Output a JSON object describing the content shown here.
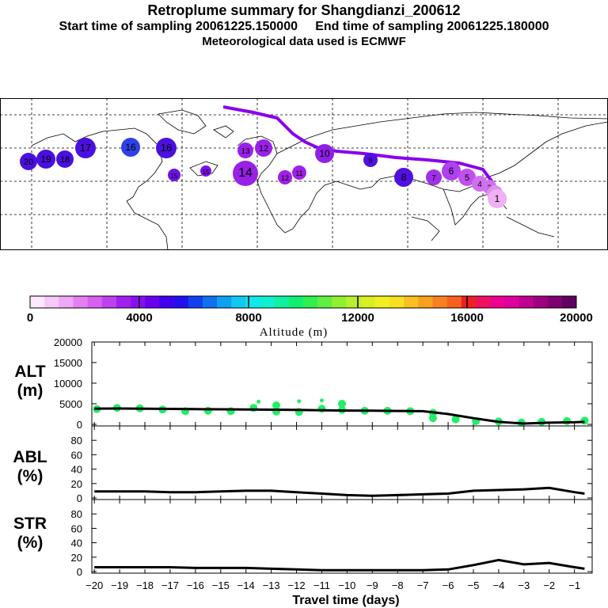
{
  "header": {
    "title": "Retroplume summary for Shangdianzi_200612",
    "sampling_start": "Start time of sampling 20061225.150000",
    "sampling_end": "End time of sampling 20061225.180000",
    "met_data": "Meteorological data used is ECMWF"
  },
  "map": {
    "plume_color": "#8800ee",
    "clusters": [
      {
        "label": "20",
        "color": "#4a10e0"
      },
      {
        "label": "19",
        "color": "#4a10e0"
      },
      {
        "label": "18",
        "color": "#4a10e0"
      },
      {
        "label": "17",
        "color": "#4a10e0"
      },
      {
        "label": "16",
        "color": "#3040e8"
      },
      {
        "label": "16",
        "color": "#4a10e0"
      },
      {
        "label": "15",
        "color": "#7010e8"
      },
      {
        "label": "15",
        "color": "#7a10e8"
      },
      {
        "label": "14",
        "color": "#9a20e8"
      },
      {
        "label": "13",
        "color": "#9a20e8"
      },
      {
        "label": "12",
        "color": "#9a20e8"
      },
      {
        "label": "12",
        "color": "#a020e8"
      },
      {
        "label": "11",
        "color": "#a020e8"
      },
      {
        "label": "10",
        "color": "#9020e8"
      },
      {
        "label": "9",
        "color": "#5010e0"
      },
      {
        "label": "8",
        "color": "#5010e0"
      },
      {
        "label": "7",
        "color": "#a030e8"
      },
      {
        "label": "6",
        "color": "#b040f0"
      },
      {
        "label": "5",
        "color": "#c050f0"
      },
      {
        "label": "4",
        "color": "#d070f0"
      },
      {
        "label": "3",
        "color": "#d070f0"
      },
      {
        "label": "2",
        "color": "#e090f0"
      },
      {
        "label": "1",
        "color": "#f0b0f4"
      }
    ]
  },
  "colorbar": {
    "label": "Altitude (m)",
    "tick_labels": [
      "0",
      "4000",
      "8000",
      "12000",
      "16000",
      "20000"
    ],
    "colors": [
      "#fde8fd",
      "#f6c8f8",
      "#eea8f5",
      "#e480f2",
      "#d860f0",
      "#c040f0",
      "#a020f0",
      "#8810f0",
      "#6a00f0",
      "#4000f0",
      "#2010f0",
      "#1040f0",
      "#1070f0",
      "#10a0f0",
      "#10c8f0",
      "#10e8f0",
      "#10f0d0",
      "#10f0a0",
      "#10f070",
      "#30f050",
      "#60f040",
      "#90f030",
      "#b8f030",
      "#d8f020",
      "#f0f020",
      "#f8e020",
      "#f8c020",
      "#f8a020",
      "#f88020",
      "#f86020",
      "#f02020",
      "#f01060",
      "#f00090",
      "#e000a0",
      "#c00090",
      "#a00080",
      "#800070",
      "#600060"
    ]
  },
  "panels": {
    "alt": {
      "title": "ALT",
      "unit": "(m)",
      "ticks": [
        "0",
        "5000",
        "10000",
        "15000",
        "20000"
      ]
    },
    "abl": {
      "title": "ABL",
      "unit": "(%)",
      "ticks": [
        "0",
        "20",
        "40",
        "60",
        "80"
      ]
    },
    "str": {
      "title": "STR",
      "unit": "(%)",
      "ticks": [
        "0",
        "20",
        "40",
        "60",
        "80"
      ]
    },
    "xticks": [
      "−20",
      "−19",
      "−18",
      "−17",
      "−16",
      "−15",
      "−14",
      "−13",
      "−12",
      "−11",
      "−10",
      "−9",
      "−8",
      "−7",
      "−6",
      "−5",
      "−4",
      "−3",
      "−2",
      "−1"
    ],
    "xlabel": "Travel time (days)"
  },
  "chart_data": {
    "type": "line",
    "title": "Retroplume summary for Shangdianzi_200612",
    "xlabel": "Travel time (days)",
    "x": [
      -20,
      -19,
      -18,
      -17,
      -16,
      -15,
      -14,
      -13,
      -12,
      -11,
      -10,
      -9,
      -8,
      -7,
      -6,
      -5,
      -4,
      -3,
      -2,
      -1,
      -0.6
    ],
    "series": [
      {
        "name": "ALT (m)",
        "ylim": [
          0,
          20000
        ],
        "values": [
          3800,
          3850,
          3800,
          3750,
          3700,
          3650,
          3600,
          3550,
          3500,
          3400,
          3350,
          3300,
          3250,
          3200,
          2500,
          1500,
          600,
          200,
          400,
          500,
          600
        ]
      },
      {
        "name": "ABL (%)",
        "ylim": [
          0,
          100
        ],
        "values": [
          9,
          9,
          9,
          8,
          8,
          9,
          10,
          10,
          8,
          6,
          4,
          3,
          4,
          5,
          6,
          10,
          11,
          12,
          14,
          8,
          6
        ]
      },
      {
        "name": "STR (%)",
        "ylim": [
          0,
          100
        ],
        "values": [
          6,
          6,
          6,
          6,
          5,
          5,
          5,
          4,
          3,
          2,
          2,
          2,
          2,
          2,
          3,
          9,
          16,
          10,
          12,
          6,
          4
        ]
      }
    ],
    "alt_scatter": [
      {
        "x": -19.9,
        "y": 3700
      },
      {
        "x": -19.1,
        "y": 4000
      },
      {
        "x": -18.2,
        "y": 3900
      },
      {
        "x": -17.3,
        "y": 3600
      },
      {
        "x": -16.4,
        "y": 3200
      },
      {
        "x": -15.5,
        "y": 3300
      },
      {
        "x": -14.6,
        "y": 3200
      },
      {
        "x": -13.7,
        "y": 4000
      },
      {
        "x": -13.5,
        "y": 5500
      },
      {
        "x": -12.8,
        "y": 3100
      },
      {
        "x": -12.8,
        "y": 4600
      },
      {
        "x": -11.9,
        "y": 3000
      },
      {
        "x": -11.9,
        "y": 5600
      },
      {
        "x": -11.0,
        "y": 3800
      },
      {
        "x": -11.0,
        "y": 5800
      },
      {
        "x": -10.2,
        "y": 3500
      },
      {
        "x": -10.2,
        "y": 5000
      },
      {
        "x": -9.3,
        "y": 3300
      },
      {
        "x": -8.4,
        "y": 3300
      },
      {
        "x": -7.5,
        "y": 3200
      },
      {
        "x": -6.6,
        "y": 2800
      },
      {
        "x": -6.6,
        "y": 1500
      },
      {
        "x": -5.7,
        "y": 1200
      },
      {
        "x": -4.9,
        "y": 800
      },
      {
        "x": -4.0,
        "y": 700
      },
      {
        "x": -3.1,
        "y": 400
      },
      {
        "x": -2.3,
        "y": 600
      },
      {
        "x": -1.3,
        "y": 800
      },
      {
        "x": -0.6,
        "y": 900
      }
    ]
  }
}
